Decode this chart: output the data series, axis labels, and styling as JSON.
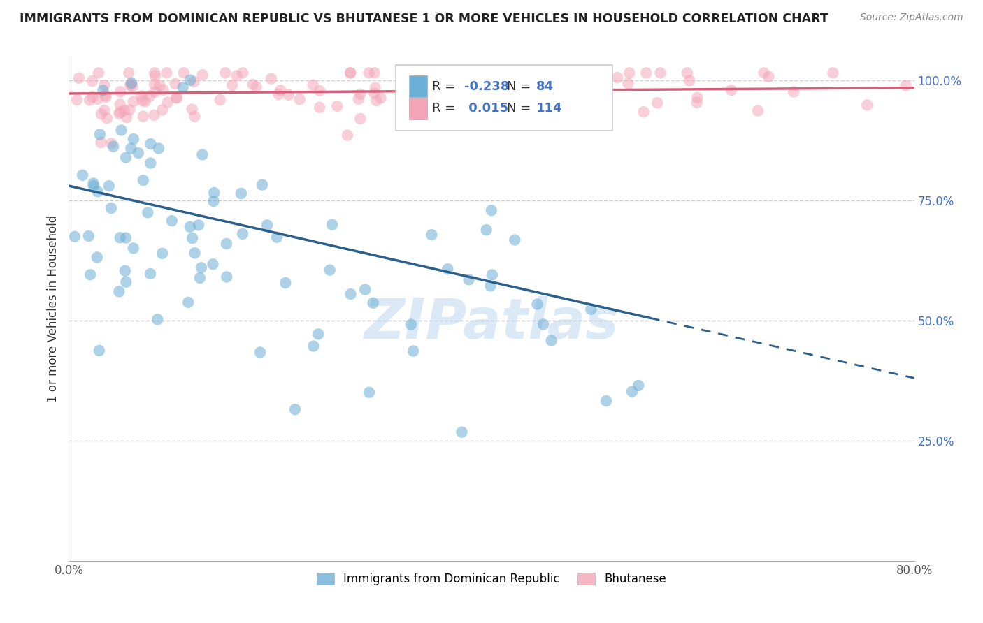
{
  "title": "IMMIGRANTS FROM DOMINICAN REPUBLIC VS BHUTANESE 1 OR MORE VEHICLES IN HOUSEHOLD CORRELATION CHART",
  "source": "Source: ZipAtlas.com",
  "ylabel": "1 or more Vehicles in Household",
  "xlim": [
    0.0,
    0.8
  ],
  "ylim": [
    0.0,
    1.05
  ],
  "blue_R": -0.238,
  "blue_N": 84,
  "pink_R": 0.015,
  "pink_N": 114,
  "blue_color": "#6baed6",
  "pink_color": "#f4a6b8",
  "blue_line_color": "#2c5f8a",
  "pink_line_color": "#d6607a",
  "watermark": "ZIPatlas",
  "watermark_color": "#b8d4f0",
  "blue_line_x0": 0.0,
  "blue_line_y0": 0.78,
  "blue_line_x1": 0.8,
  "blue_line_y1": 0.38,
  "blue_line_solid_end": 0.55,
  "pink_line_x0": 0.0,
  "pink_line_y0": 0.972,
  "pink_line_x1": 0.8,
  "pink_line_y1": 0.984,
  "hline_100_y": 1.0,
  "hline_75_y": 0.75,
  "hline_50_y": 0.5,
  "hline_25_y": 0.25,
  "ytick_color": "#4472C4",
  "xtick_color": "#555555"
}
